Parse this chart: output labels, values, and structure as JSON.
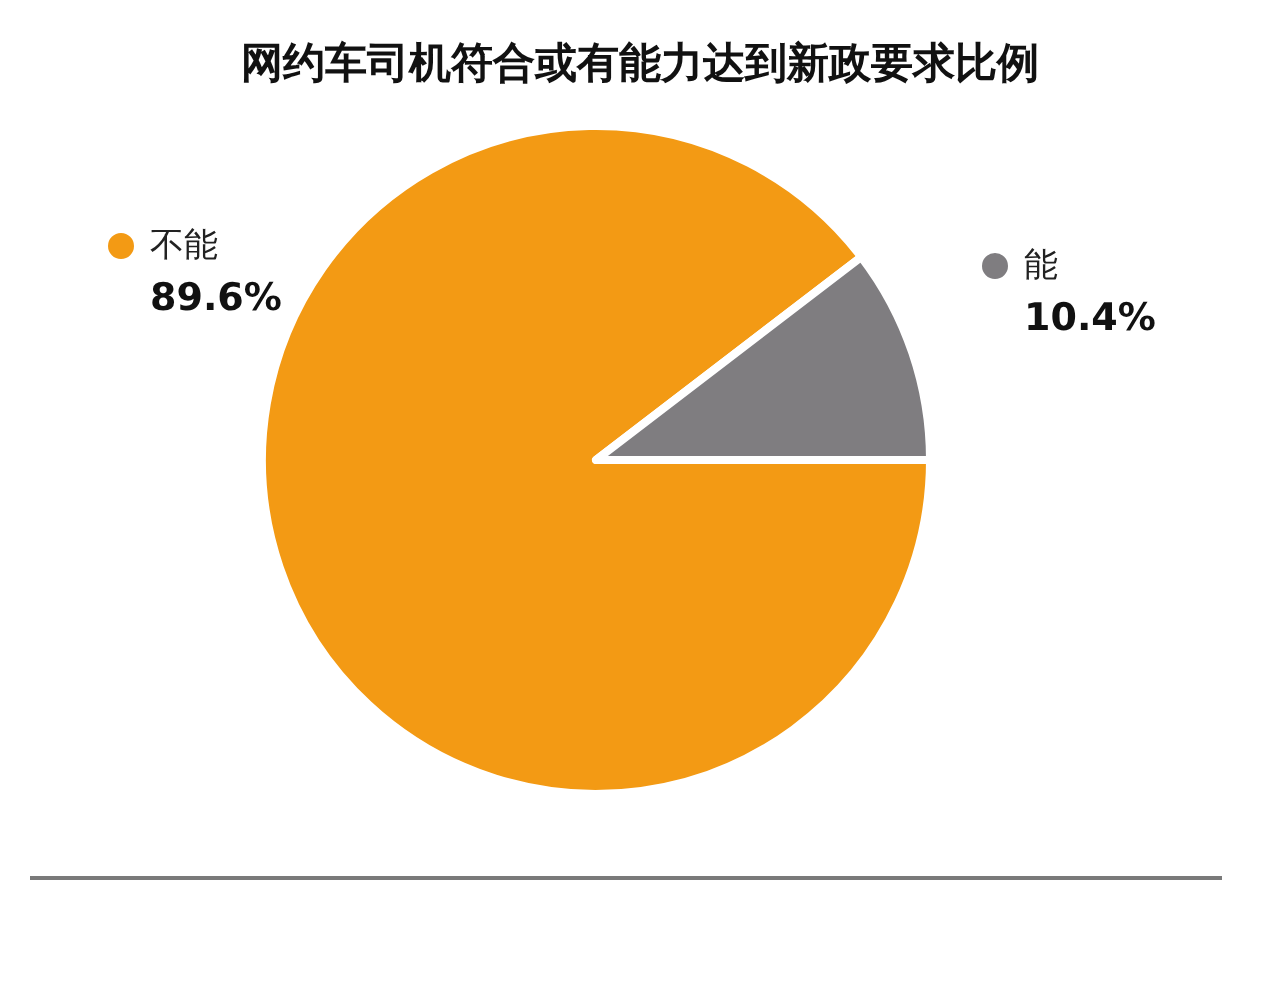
{
  "chart_data": {
    "type": "pie",
    "title": "网约车司机符合或有能力达到新政要求比例",
    "categories": [
      "不能",
      "能"
    ],
    "values": [
      89.6,
      10.4
    ],
    "colors": [
      "#f39a14",
      "#7f7d80"
    ],
    "value_labels": [
      "89.6%",
      "10.4%"
    ],
    "legend": "top"
  }
}
